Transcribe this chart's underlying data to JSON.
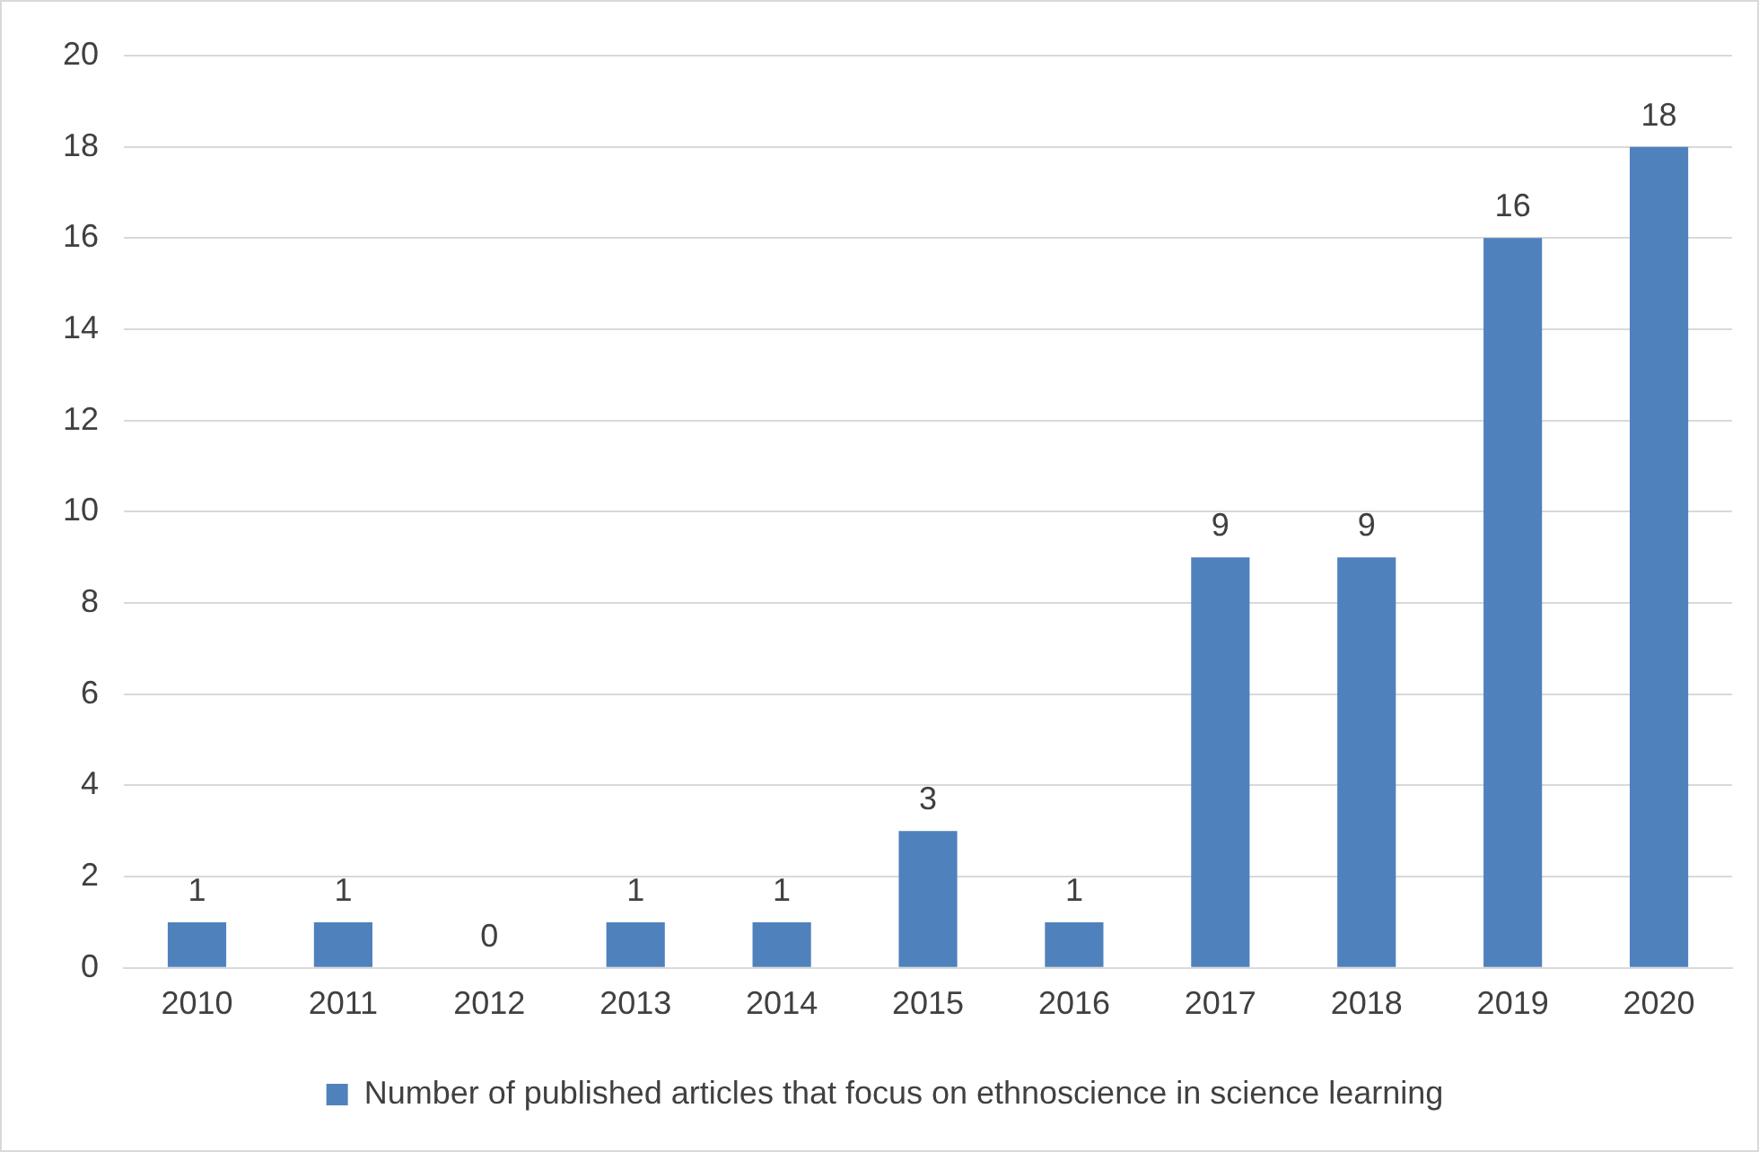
{
  "chart_data": {
    "type": "bar",
    "categories": [
      "2010",
      "2011",
      "2012",
      "2013",
      "2014",
      "2015",
      "2016",
      "2017",
      "2018",
      "2019",
      "2020"
    ],
    "series": [
      {
        "name": "Number of published articles that focus on ethnoscience in science learning",
        "color": "#4f81bd",
        "values": [
          1,
          1,
          0,
          1,
          1,
          3,
          1,
          9,
          9,
          16,
          18
        ]
      }
    ],
    "ylim": [
      0,
      20
    ],
    "yticks": [
      0,
      2,
      4,
      6,
      8,
      10,
      12,
      14,
      16,
      18,
      20
    ],
    "grid": "y",
    "legend": "bottom",
    "data_labels": true
  }
}
